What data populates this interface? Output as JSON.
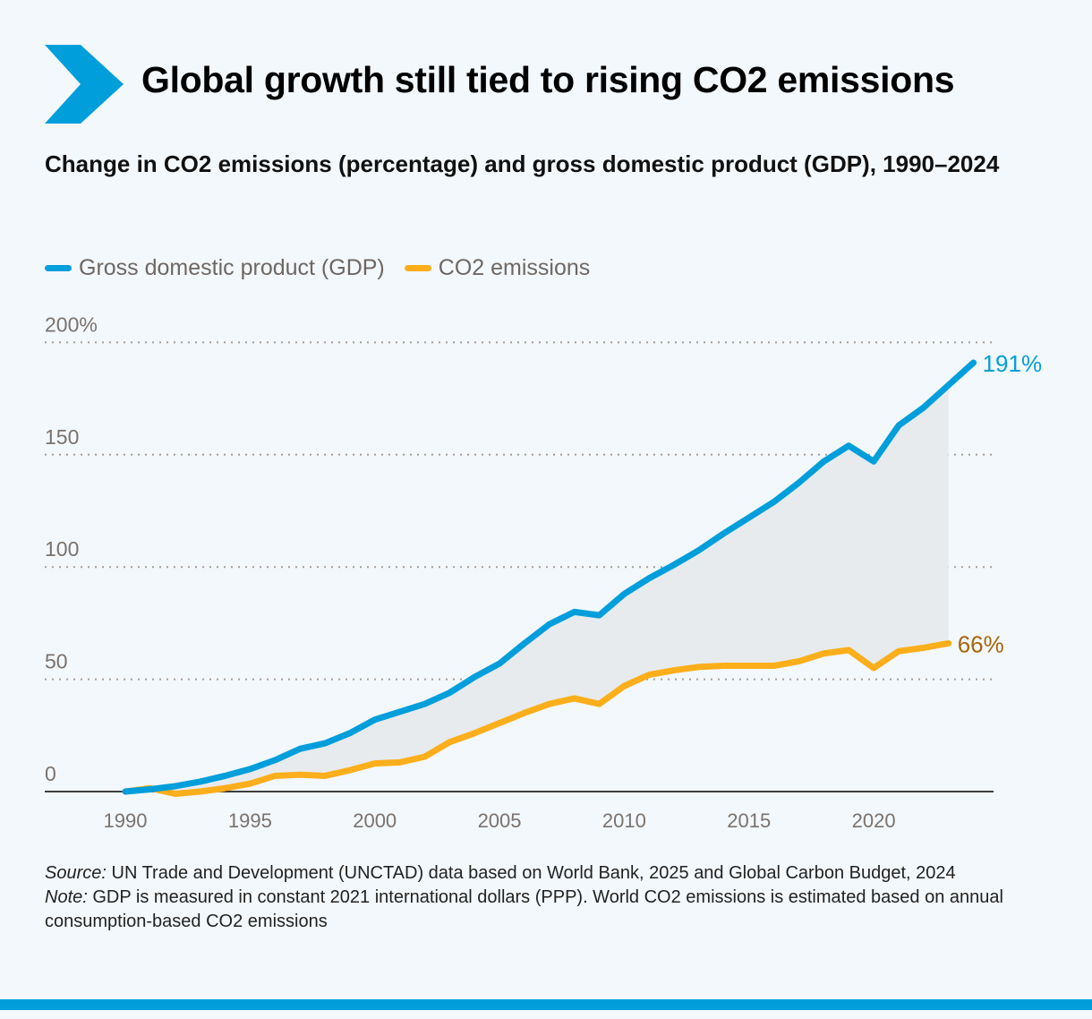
{
  "header": {
    "title": "Global growth still tied to rising CO2 emissions",
    "subtitle": "Change in CO2 emissions (percentage) and gross domestic product (GDP), 1990–2024"
  },
  "colors": {
    "gdp": "#009edb",
    "co2": "#fcae1b",
    "co2_label": "#a8650a",
    "shade": "#e7ebee",
    "brand": "#009edb"
  },
  "chart_data": {
    "type": "line",
    "title": "Change in CO2 emissions (percentage) and gross domestic product (GDP), 1990–2024",
    "xlabel": "",
    "ylabel": "",
    "xlim": [
      1990,
      2024
    ],
    "ylim": [
      0,
      200
    ],
    "x_ticks": [
      "1990",
      "1995",
      "2000",
      "2005",
      "2010",
      "2015",
      "2020"
    ],
    "y_ticks": [
      "0",
      "50",
      "100",
      "150",
      "200%"
    ],
    "grid": true,
    "legend": "top-left",
    "series": [
      {
        "name": "Gross domestic product (GDP)",
        "color": "#009edb",
        "end_label": "191%",
        "x": [
          1990,
          1991,
          1992,
          1993,
          1994,
          1995,
          1996,
          1997,
          1998,
          1999,
          2000,
          2001,
          2002,
          2003,
          2004,
          2005,
          2006,
          2007,
          2008,
          2009,
          2010,
          2011,
          2012,
          2013,
          2014,
          2015,
          2016,
          2017,
          2018,
          2019,
          2020,
          2021,
          2022,
          2023,
          2024
        ],
        "values": [
          0,
          1,
          2.4,
          4.4,
          7,
          10,
          14,
          19,
          21.5,
          26,
          32,
          35.5,
          39,
          44,
          51,
          57,
          66,
          74.5,
          80,
          78.5,
          88,
          95,
          101,
          107.5,
          115,
          122,
          129,
          137.5,
          147,
          154,
          147,
          163,
          171,
          181,
          191
        ]
      },
      {
        "name": "CO2 emissions",
        "color": "#fcae1b",
        "end_label": "66%",
        "x": [
          1990,
          1991,
          1992,
          1993,
          1994,
          1995,
          1996,
          1997,
          1998,
          1999,
          2000,
          2001,
          2002,
          2003,
          2004,
          2005,
          2006,
          2007,
          2008,
          2009,
          2010,
          2011,
          2012,
          2013,
          2014,
          2015,
          2016,
          2017,
          2018,
          2019,
          2020,
          2021,
          2022,
          2023
        ],
        "values": [
          0,
          1.5,
          -1,
          0,
          1.5,
          3.5,
          7,
          7.5,
          7,
          9.5,
          12.5,
          13,
          15.5,
          22,
          26,
          30.5,
          35,
          39,
          41.5,
          39,
          47,
          52,
          54,
          55.5,
          56,
          56,
          56,
          58,
          61.5,
          63,
          55,
          62.5,
          64,
          66
        ]
      }
    ]
  },
  "notes": {
    "source_label": "Source:",
    "source_text": " UN Trade and Development (UNCTAD) data based on World Bank, 2025 and Global Carbon Budget, 2024",
    "note_label": "Note:",
    "note_text": " GDP is measured in constant 2021 international dollars (PPP). World CO2 emissions is estimated based on annual consumption-based CO2 emissions"
  }
}
